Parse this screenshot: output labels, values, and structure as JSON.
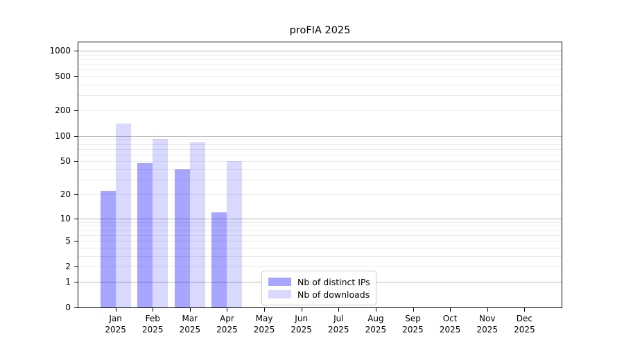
{
  "chart_data": {
    "type": "bar",
    "title": "proFIA 2025",
    "categories": [
      "Jan",
      "Feb",
      "Mar",
      "Apr",
      "May",
      "Jun",
      "Jul",
      "Aug",
      "Sep",
      "Oct",
      "Nov",
      "Dec"
    ],
    "x_year": "2025",
    "series": [
      {
        "name": "Nb of distinct IPs",
        "color": "#0000ff",
        "alpha": 0.35,
        "values": [
          22,
          48,
          40,
          12,
          0,
          0,
          0,
          0,
          0,
          0,
          0,
          0
        ]
      },
      {
        "name": "Nb of downloads",
        "color": "#0000ff",
        "alpha": 0.15,
        "values": [
          140,
          93,
          84,
          50,
          0,
          0,
          0,
          0,
          0,
          0,
          0,
          0
        ]
      }
    ],
    "yscale": "log1p",
    "y_ticks": [
      0,
      1,
      2,
      5,
      10,
      20,
      50,
      100,
      200,
      500,
      1000
    ],
    "ylim": [
      0,
      1250
    ],
    "xlabel": "",
    "ylabel": "",
    "grid": {
      "major_color": "#b3b3b3",
      "minor_color": "#eaeaea",
      "major_values": [
        1,
        10,
        100,
        1000
      ]
    },
    "legend": {
      "position": "lower-center-inside"
    }
  }
}
